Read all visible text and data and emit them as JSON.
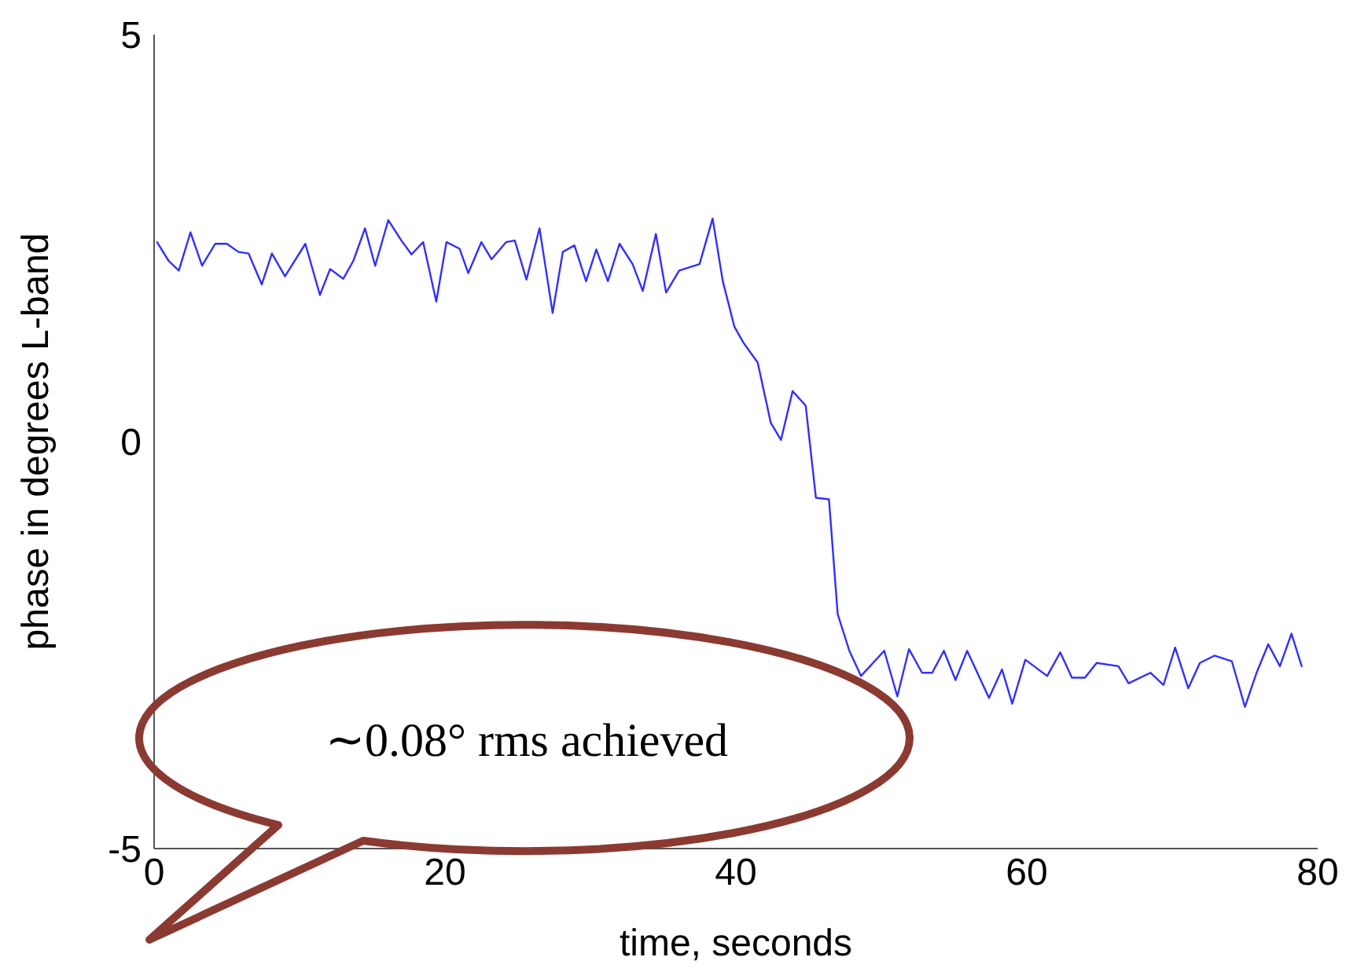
{
  "chart_data": {
    "type": "line",
    "xlabel": "time, seconds",
    "ylabel": "phase in degrees L-band",
    "annotations": [
      "∼0.08° rms achieved"
    ],
    "xlim": [
      0,
      80
    ],
    "xticks": [
      0,
      20,
      40,
      60,
      80
    ],
    "ylim": [
      -5,
      5
    ],
    "yticks": [
      -5,
      0,
      5
    ],
    "grid": false,
    "legend": false,
    "marker": "none",
    "line_style": "solid",
    "series": [
      {
        "color": "#3030ff",
        "x": [
          0.2,
          1,
          1.7,
          2.5,
          3.3,
          4.2,
          5,
          5.8,
          6.5,
          7.4,
          8.1,
          9,
          10.4,
          11.4,
          12.1,
          13,
          13.7,
          14.5,
          15.2,
          16.1,
          17,
          17.7,
          18.5,
          19.4,
          20.1,
          21,
          21.6,
          22.5,
          23.2,
          24.2,
          24.8,
          25.6,
          26.5,
          27.4,
          28.1,
          28.9,
          29.7,
          30.4,
          31.2,
          32,
          32.9,
          33.6,
          34.5,
          35.2,
          36.1,
          37.5,
          38.4,
          39.1,
          39.9,
          40.5,
          41.5,
          42.4,
          43.1,
          43.9,
          44.8,
          45.5,
          46.4,
          47,
          47.8,
          48.6,
          50.2,
          51.1,
          51.9,
          52.8,
          53.5,
          54.3,
          55.1,
          55.9,
          57.4,
          58.3,
          59,
          59.9,
          61.4,
          62.3,
          63.1,
          64,
          64.8,
          66.3,
          67,
          68.5,
          69.4,
          70.2,
          71.1,
          71.9,
          72.9,
          74.1,
          75,
          75.8,
          76.6,
          77.4,
          78.2,
          78.9
        ],
        "values": [
          2.45,
          2.22,
          2.1,
          2.57,
          2.16,
          2.43,
          2.43,
          2.33,
          2.31,
          1.93,
          2.31,
          2.03,
          2.43,
          1.8,
          2.12,
          2.0,
          2.22,
          2.62,
          2.16,
          2.72,
          2.47,
          2.3,
          2.45,
          1.72,
          2.45,
          2.37,
          2.07,
          2.45,
          2.24,
          2.45,
          2.47,
          1.99,
          2.62,
          1.58,
          2.33,
          2.41,
          1.97,
          2.36,
          1.97,
          2.43,
          2.18,
          1.85,
          2.55,
          1.83,
          2.1,
          2.18,
          2.74,
          1.97,
          1.41,
          1.22,
          0.97,
          0.23,
          0.02,
          0.62,
          0.44,
          -0.69,
          -0.71,
          -2.12,
          -2.57,
          -2.88,
          -2.57,
          -3.13,
          -2.55,
          -2.84,
          -2.84,
          -2.57,
          -2.93,
          -2.57,
          -3.15,
          -2.8,
          -3.22,
          -2.68,
          -2.88,
          -2.59,
          -2.9,
          -2.9,
          -2.72,
          -2.76,
          -2.97,
          -2.84,
          -2.99,
          -2.53,
          -3.03,
          -2.72,
          -2.63,
          -2.7,
          -3.26,
          -2.84,
          -2.49,
          -2.76,
          -2.36,
          -2.76
        ]
      }
    ]
  }
}
